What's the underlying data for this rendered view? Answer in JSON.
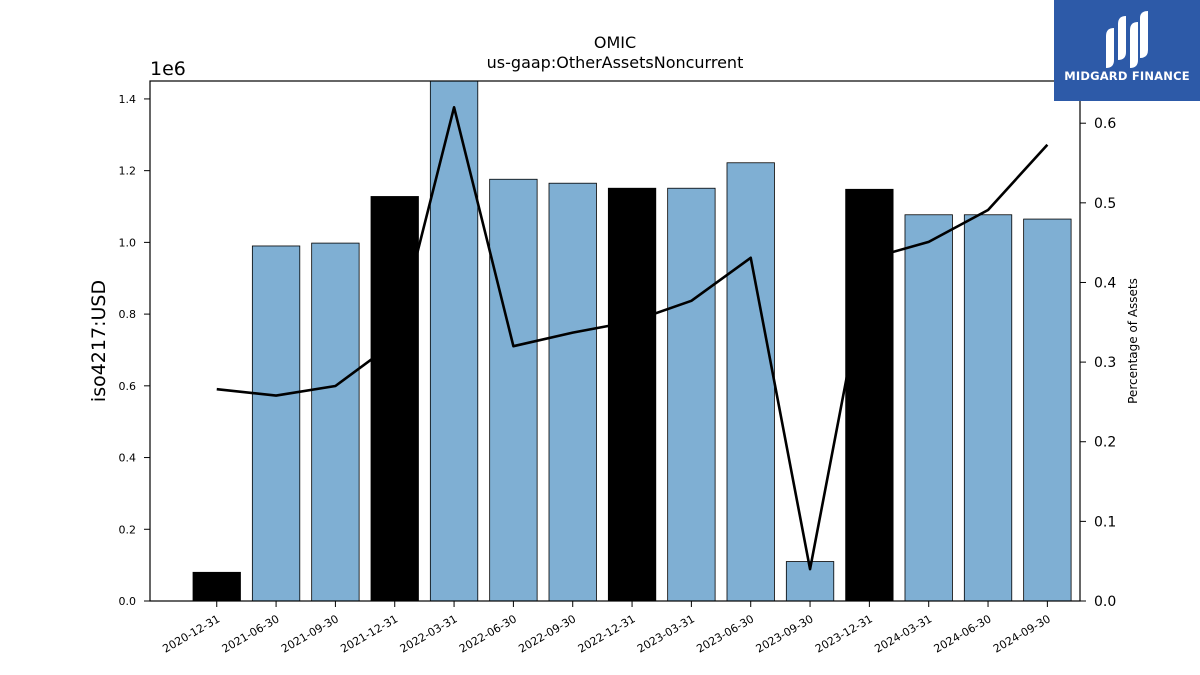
{
  "brand": {
    "name": "MIDGARD FINANCE",
    "logo_icon": "midgard-logo-icon",
    "color": "#2d5aa8"
  },
  "chart_data": {
    "type": "bar",
    "title": "OMIC",
    "subtitle": "us-gaap:OtherAssetsNoncurrent",
    "ylabel": "iso4217:USD",
    "y2label": "Percentage of Assets",
    "y_offset_label": "1e6",
    "ylim": [
      0,
      1450000
    ],
    "y2lim": [
      0,
      0.653
    ],
    "yticks": [
      0,
      200000,
      400000,
      600000,
      800000,
      1000000,
      1200000,
      1400000
    ],
    "ytick_labels": [
      "0.0",
      "0.2",
      "0.4",
      "0.6",
      "0.8",
      "1.0",
      "1.2",
      "1.4"
    ],
    "y2ticks": [
      0,
      0.1,
      0.2,
      0.3,
      0.4,
      0.5,
      0.6
    ],
    "y2tick_labels": [
      "0.0",
      "0.1",
      "0.2",
      "0.3",
      "0.4",
      "0.5",
      "0.6"
    ],
    "grid": false,
    "categories": [
      "2020-12-31",
      "2021-06-30",
      "2021-09-30",
      "2021-12-31",
      "2022-03-31",
      "2022-06-30",
      "2022-09-30",
      "2022-12-31",
      "2023-03-31",
      "2023-06-30",
      "2023-09-30",
      "2023-12-31",
      "2024-03-31",
      "2024-06-30",
      "2024-09-30"
    ],
    "series": [
      {
        "type": "bar",
        "values": [
          80000,
          990000,
          998000,
          1128000,
          1450000,
          1176000,
          1165000,
          1151000,
          1151000,
          1222000,
          110000,
          1148000,
          1077000,
          1077000,
          1065000
        ],
        "colors": [
          "#000000",
          "#7fafd3",
          "#7fafd3",
          "#000000",
          "#7fafd3",
          "#7fafd3",
          "#7fafd3",
          "#000000",
          "#7fafd3",
          "#7fafd3",
          "#7fafd3",
          "#000000",
          "#7fafd3",
          "#7fafd3",
          "#7fafd3"
        ]
      },
      {
        "type": "line",
        "axis": "right",
        "color": "#000000",
        "values": [
          0.266,
          0.258,
          0.27,
          0.325,
          0.62,
          0.32,
          0.337,
          0.351,
          0.377,
          0.431,
          0.04,
          0.43,
          0.451,
          0.491,
          0.573
        ]
      }
    ]
  }
}
